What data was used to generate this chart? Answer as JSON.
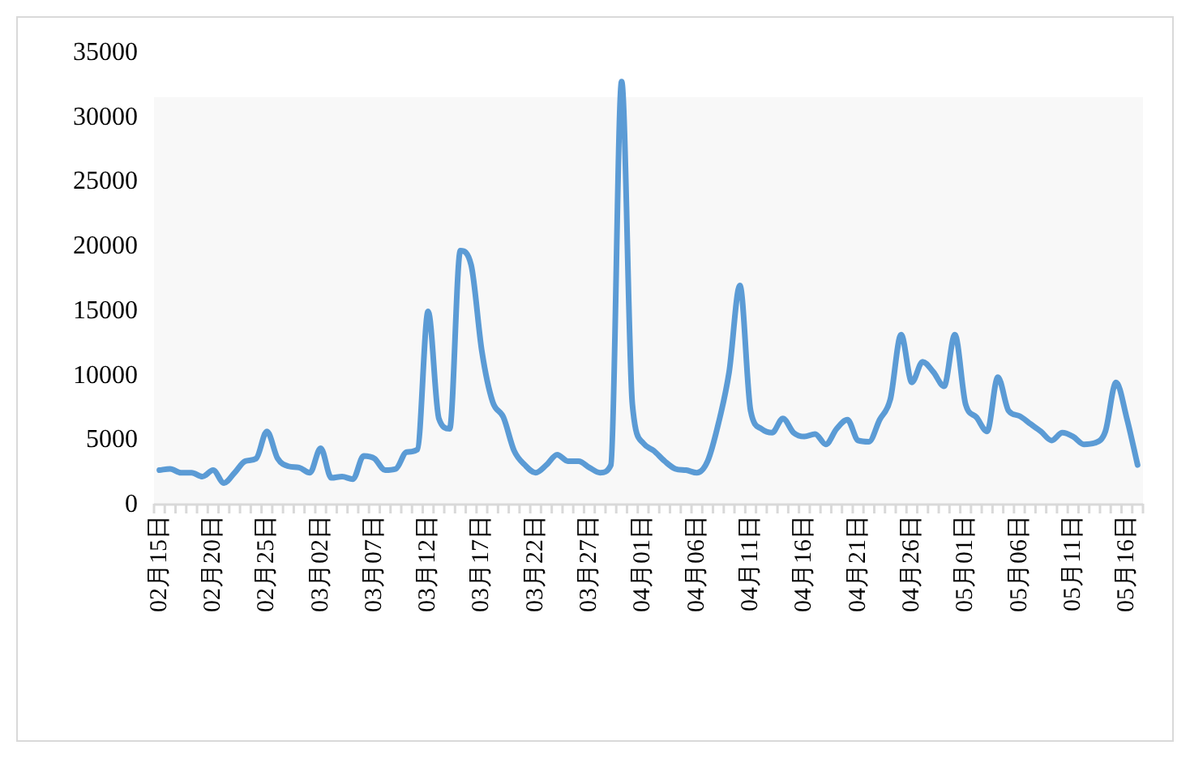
{
  "chart_data": {
    "type": "line",
    "categories": [
      "02月15日",
      null,
      null,
      null,
      null,
      "02月20日",
      null,
      null,
      null,
      null,
      "02月25日",
      null,
      null,
      null,
      null,
      "03月02日",
      null,
      null,
      null,
      null,
      "03月07日",
      null,
      null,
      null,
      null,
      "03月12日",
      null,
      null,
      null,
      null,
      "03月17日",
      null,
      null,
      null,
      null,
      "03月22日",
      null,
      null,
      null,
      null,
      "03月27日",
      null,
      null,
      null,
      null,
      "04月01日",
      null,
      null,
      null,
      null,
      "04月06日",
      null,
      null,
      null,
      null,
      "04月11日",
      null,
      null,
      null,
      null,
      "04月16日",
      null,
      null,
      null,
      null,
      "04月21日",
      null,
      null,
      null,
      null,
      "04月26日",
      null,
      null,
      null,
      null,
      "05月01日",
      null,
      null,
      null,
      null,
      "05月06日",
      null,
      null,
      null,
      null,
      "05月11日",
      null,
      null,
      null,
      null,
      "05月16日",
      null
    ],
    "series": [
      {
        "color": "#5b9bd5",
        "values": [
          2600,
          2700,
          2400,
          2400,
          2100,
          2600,
          1600,
          2400,
          3300,
          3500,
          5600,
          3500,
          2900,
          2800,
          2400,
          4300,
          2000,
          2100,
          1900,
          3700,
          3500,
          2600,
          2700,
          4000,
          4200,
          14900,
          6600,
          5800,
          19600,
          18500,
          11800,
          7900,
          6700,
          4100,
          3000,
          2400,
          3000,
          3800,
          3300,
          3300,
          2800,
          2400,
          3000,
          32700,
          7700,
          4700,
          4100,
          3300,
          2700,
          2600,
          2400,
          3300,
          6200,
          10200,
          16900,
          7200,
          5800,
          5500,
          6600,
          5500,
          5200,
          5400,
          4600,
          5800,
          6500,
          4900,
          4800,
          6500,
          8100,
          13100,
          9400,
          11000,
          10200,
          9100,
          13100,
          7700,
          6700,
          5600,
          9800,
          7200,
          6800,
          6200,
          5600,
          4900,
          5500,
          5200,
          4600,
          4700,
          5600,
          9400,
          6600,
          3000
        ]
      }
    ],
    "ylim": [
      0,
      35000
    ],
    "yticks": [
      0,
      5000,
      10000,
      15000,
      20000,
      25000,
      30000,
      35000
    ],
    "grid": false,
    "marker": "none",
    "line_style": "solid"
  }
}
